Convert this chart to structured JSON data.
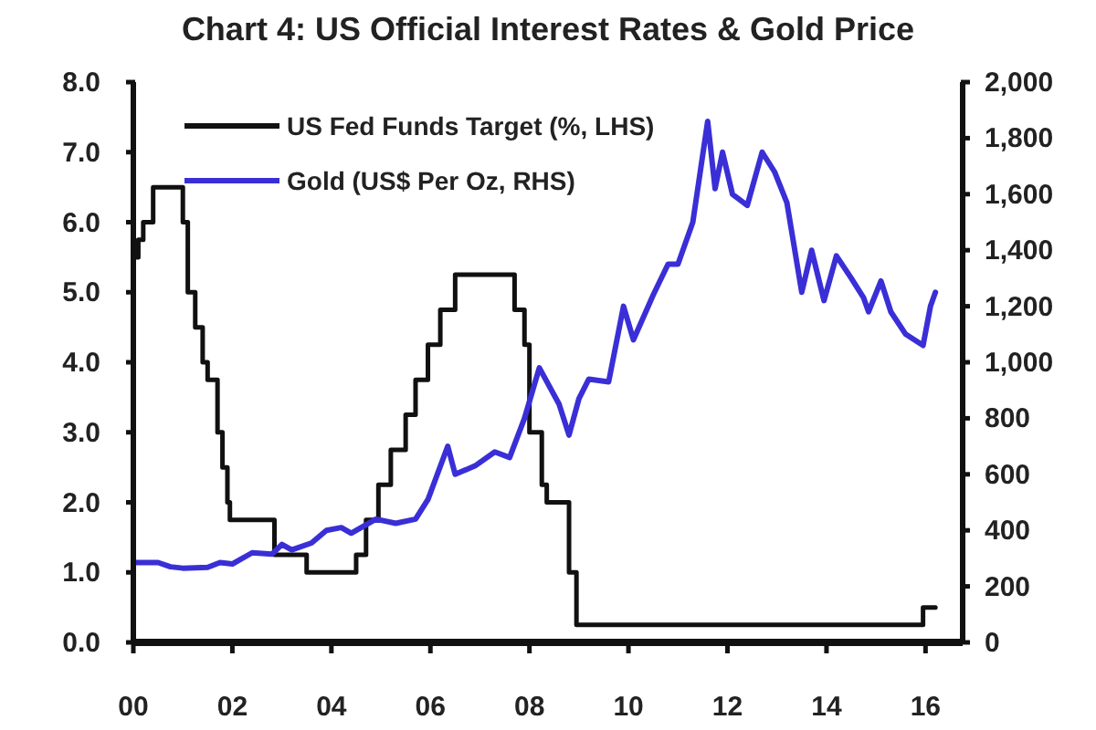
{
  "chart_data": {
    "type": "line",
    "title": "Chart 4: US Official Interest Rates & Gold Price",
    "xlim": [
      2000,
      2016.75
    ],
    "xticks": [
      {
        "value": 2000,
        "label": "00"
      },
      {
        "value": 2002,
        "label": "02"
      },
      {
        "value": 2004,
        "label": "04"
      },
      {
        "value": 2006,
        "label": "06"
      },
      {
        "value": 2008,
        "label": "08"
      },
      {
        "value": 2010,
        "label": "10"
      },
      {
        "value": 2012,
        "label": "12"
      },
      {
        "value": 2014,
        "label": "14"
      },
      {
        "value": 2016,
        "label": "16"
      }
    ],
    "ylim": [
      0,
      8
    ],
    "yticks": [
      {
        "value": 0,
        "label": "0.0"
      },
      {
        "value": 1,
        "label": "1.0"
      },
      {
        "value": 2,
        "label": "2.0"
      },
      {
        "value": 3,
        "label": "3.0"
      },
      {
        "value": 4,
        "label": "4.0"
      },
      {
        "value": 5,
        "label": "5.0"
      },
      {
        "value": 6,
        "label": "6.0"
      },
      {
        "value": 7,
        "label": "7.0"
      },
      {
        "value": 8,
        "label": "8.0"
      }
    ],
    "y2lim": [
      0,
      2000
    ],
    "y2ticks": [
      0,
      200,
      400,
      600,
      800,
      {
        "value": 1000,
        "label": "1,000"
      },
      {
        "value": 1200,
        "label": "1,200"
      },
      {
        "value": 1400,
        "label": "1,400"
      },
      {
        "value": 1600,
        "label": "1,600"
      },
      {
        "value": 1800,
        "label": "1,800"
      },
      {
        "value": 2000,
        "label": "2,000"
      }
    ],
    "grid": false,
    "legend": "top left",
    "marker": "none",
    "line_style": "solid",
    "series": [
      {
        "name": "US Fed Funds Target (%, LHS)",
        "type": "step",
        "color": "#111111",
        "x": [
          2000,
          2000.1,
          2000.2,
          2000.4,
          2001.0,
          2001.1,
          2001.25,
          2001.4,
          2001.5,
          2001.7,
          2001.8,
          2001.9,
          2001.95,
          2002.85,
          2003.5,
          2004.5,
          2004.7,
          2004.95,
          2005.2,
          2005.5,
          2005.7,
          2005.95,
          2006.2,
          2006.5,
          2007.7,
          2007.9,
          2008.0,
          2008.25,
          2008.35,
          2008.8,
          2008.95,
          2015.95,
          2016.2
        ],
        "values": [
          5.5,
          5.75,
          6.0,
          6.5,
          6.0,
          5.0,
          4.5,
          4.0,
          3.75,
          3.0,
          2.5,
          2.0,
          1.75,
          1.25,
          1.0,
          1.25,
          1.75,
          2.25,
          2.75,
          3.25,
          3.75,
          4.25,
          4.75,
          5.25,
          4.75,
          4.25,
          3.0,
          2.25,
          2.0,
          1.0,
          0.25,
          0.5,
          0.5
        ]
      },
      {
        "name": "Gold (US$ Per Oz, RHS)",
        "axis": "y2",
        "color": "#3a2fd6",
        "x": [
          2000.0,
          2000.5,
          2000.75,
          2001.0,
          2001.5,
          2001.75,
          2002.0,
          2002.4,
          2002.8,
          2003.0,
          2003.2,
          2003.6,
          2003.9,
          2004.2,
          2004.4,
          2004.9,
          2005.3,
          2005.7,
          2005.95,
          2006.35,
          2006.5,
          2006.9,
          2007.3,
          2007.6,
          2007.9,
          2008.2,
          2008.6,
          2008.8,
          2009.0,
          2009.2,
          2009.6,
          2009.9,
          2010.1,
          2010.5,
          2010.8,
          2011.0,
          2011.3,
          2011.6,
          2011.75,
          2011.9,
          2012.1,
          2012.4,
          2012.7,
          2012.95,
          2013.2,
          2013.5,
          2013.7,
          2013.95,
          2014.2,
          2014.5,
          2014.75,
          2014.85,
          2015.1,
          2015.3,
          2015.6,
          2015.95,
          2016.1,
          2016.2
        ],
        "values": [
          285,
          285,
          270,
          265,
          268,
          285,
          280,
          320,
          315,
          350,
          330,
          355,
          400,
          410,
          390,
          440,
          425,
          440,
          510,
          700,
          600,
          630,
          680,
          660,
          800,
          980,
          850,
          740,
          870,
          940,
          930,
          1200,
          1080,
          1240,
          1350,
          1350,
          1500,
          1860,
          1620,
          1750,
          1600,
          1560,
          1750,
          1680,
          1570,
          1250,
          1400,
          1220,
          1380,
          1300,
          1230,
          1180,
          1290,
          1180,
          1100,
          1060,
          1200,
          1250
        ]
      }
    ]
  }
}
